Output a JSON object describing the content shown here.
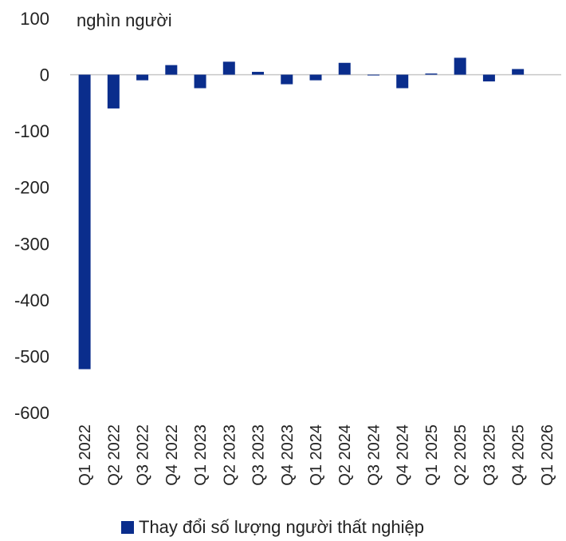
{
  "chart_data": {
    "type": "bar",
    "unit_label": "nghìn người",
    "categories": [
      "Q1 2022",
      "Q2 2022",
      "Q3 2022",
      "Q4 2022",
      "Q1 2023",
      "Q2 2023",
      "Q3 2023",
      "Q4 2023",
      "Q1 2024",
      "Q2 2024",
      "Q3 2024",
      "Q4 2024",
      "Q1 2025",
      "Q2 2025",
      "Q3 2025",
      "Q4 2025",
      "Q1 2026"
    ],
    "series": [
      {
        "name": "Thay đổi số lượng người thất nghiệp",
        "values": [
          -523,
          -60,
          -10,
          17,
          -24,
          23,
          5,
          -17,
          -10,
          21,
          -1,
          -24,
          2,
          30,
          -12,
          10,
          0
        ]
      }
    ],
    "yticks": [
      100,
      0,
      -100,
      -200,
      -300,
      -400,
      -500,
      -600
    ],
    "ylim": [
      -600,
      100
    ],
    "grid": false,
    "legend": "bottom",
    "bar_color": "#0a2d8c",
    "axis_color": "#c8c8c8"
  }
}
